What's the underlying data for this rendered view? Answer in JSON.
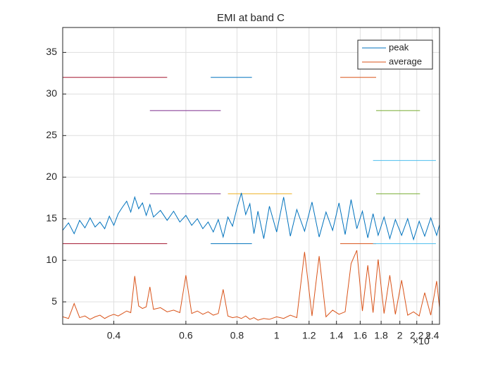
{
  "chart_data": {
    "type": "line",
    "title": "EMI at band C",
    "x_exponent_base": "×10",
    "x_exponent": "8",
    "x": [
      0.3,
      0.31,
      0.32,
      0.33,
      0.34,
      0.35,
      0.36,
      0.37,
      0.38,
      0.39,
      0.4,
      0.41,
      0.42,
      0.43,
      0.44,
      0.45,
      0.46,
      0.47,
      0.48,
      0.49,
      0.5,
      0.52,
      0.54,
      0.56,
      0.58,
      0.6,
      0.62,
      0.64,
      0.66,
      0.68,
      0.7,
      0.72,
      0.74,
      0.76,
      0.78,
      0.8,
      0.82,
      0.84,
      0.86,
      0.88,
      0.9,
      0.93,
      0.96,
      1.0,
      1.04,
      1.08,
      1.12,
      1.17,
      1.22,
      1.27,
      1.32,
      1.37,
      1.42,
      1.47,
      1.52,
      1.57,
      1.62,
      1.67,
      1.72,
      1.77,
      1.83,
      1.89,
      1.95,
      2.02,
      2.09,
      2.16,
      2.23,
      2.3,
      2.38,
      2.46,
      2.5
    ],
    "series": [
      {
        "name": "peak",
        "color": "#0072BD",
        "values": [
          13.6,
          14.5,
          13.2,
          14.8,
          13.9,
          15.1,
          14.0,
          14.6,
          13.8,
          15.3,
          14.2,
          15.6,
          16.4,
          17.1,
          15.8,
          17.6,
          16.2,
          16.9,
          15.4,
          16.7,
          15.2,
          16.0,
          14.8,
          15.9,
          14.6,
          15.4,
          14.2,
          15.0,
          13.8,
          14.6,
          13.4,
          14.9,
          12.8,
          15.2,
          14.1,
          16.3,
          18.1,
          15.5,
          16.8,
          13.2,
          15.9,
          12.6,
          16.5,
          13.4,
          17.6,
          12.9,
          16.1,
          13.5,
          17.0,
          12.8,
          15.8,
          13.6,
          16.9,
          13.1,
          17.3,
          13.8,
          15.9,
          12.7,
          15.6,
          13.0,
          15.2,
          12.6,
          14.9,
          13.0,
          15.0,
          12.5,
          14.7,
          12.9,
          15.1,
          13.0,
          14.3
        ]
      },
      {
        "name": "average",
        "color": "#D95319",
        "values": [
          3.2,
          3.0,
          4.8,
          3.1,
          3.3,
          2.9,
          3.2,
          3.4,
          3.0,
          3.3,
          3.5,
          3.3,
          3.6,
          3.9,
          3.7,
          8.1,
          4.5,
          4.2,
          4.4,
          6.8,
          4.1,
          4.3,
          3.8,
          4.0,
          3.7,
          8.2,
          3.6,
          3.9,
          3.5,
          3.8,
          3.4,
          3.6,
          6.5,
          3.3,
          3.1,
          3.2,
          3.0,
          3.3,
          2.9,
          3.1,
          2.8,
          3.0,
          2.9,
          3.2,
          3.0,
          3.4,
          3.1,
          11.0,
          3.3,
          10.5,
          3.2,
          4.0,
          3.5,
          3.8,
          9.6,
          11.2,
          3.9,
          9.4,
          3.7,
          10.1,
          3.6,
          8.2,
          3.5,
          7.6,
          3.4,
          3.8,
          3.3,
          6.1,
          3.4,
          7.5,
          4.3
        ]
      }
    ],
    "limit_lines": [
      {
        "x": [
          0.3,
          0.54
        ],
        "y": 32,
        "color": "#A2142F"
      },
      {
        "x": [
          0.69,
          0.87
        ],
        "y": 32,
        "color": "#0072BD"
      },
      {
        "x": [
          1.43,
          1.75
        ],
        "y": 32,
        "color": "#D95319"
      },
      {
        "x": [
          0.76,
          1.0
        ],
        "y": 38,
        "color": "#EDB120"
      },
      {
        "x": [
          0.49,
          0.73
        ],
        "y": 28,
        "color": "#7E2F8E"
      },
      {
        "x": [
          1.75,
          2.24
        ],
        "y": 28,
        "color": "#77AC30"
      },
      {
        "x": [
          1.72,
          2.45
        ],
        "y": 22,
        "color": "#4DBEEE"
      },
      {
        "x": [
          0.49,
          0.73
        ],
        "y": 18,
        "color": "#7E2F8E"
      },
      {
        "x": [
          0.76,
          1.09
        ],
        "y": 18,
        "color": "#EDB120"
      },
      {
        "x": [
          1.75,
          2.24
        ],
        "y": 18,
        "color": "#77AC30"
      },
      {
        "x": [
          0.3,
          0.54
        ],
        "y": 12,
        "color": "#A2142F"
      },
      {
        "x": [
          0.69,
          0.87
        ],
        "y": 12,
        "color": "#0072BD"
      },
      {
        "x": [
          1.43,
          1.75
        ],
        "y": 12,
        "color": "#D95319"
      },
      {
        "x": [
          1.72,
          2.45
        ],
        "y": 12,
        "color": "#4DBEEE"
      }
    ],
    "xlim": [
      0.3,
      2.5
    ],
    "ylim": [
      2.3,
      38
    ],
    "xscale": "log",
    "xticks": [
      0.4,
      0.6,
      0.8,
      1,
      1.2,
      1.4,
      1.6,
      1.8,
      2,
      2.2,
      2.4
    ],
    "yticks": [
      5,
      10,
      15,
      20,
      25,
      30,
      35
    ],
    "grid": true,
    "legend": "top-right"
  }
}
